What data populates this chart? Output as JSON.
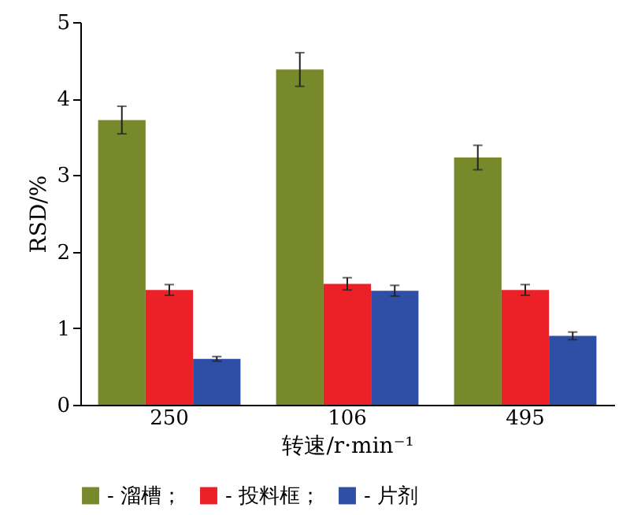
{
  "chart_data": {
    "type": "bar",
    "xlabel": "转速/r·min⁻¹",
    "ylabel": "RSD/%",
    "categories": [
      "250",
      "106",
      "495"
    ],
    "series": [
      {
        "name": "- 溜槽；",
        "color": "#77892b",
        "values": [
          3.72,
          4.38,
          3.23
        ],
        "errors": [
          0.18,
          0.22,
          0.16
        ]
      },
      {
        "name": "- 投料框；",
        "color": "#ec2127",
        "values": [
          1.5,
          1.58,
          1.5
        ],
        "errors": [
          0.07,
          0.08,
          0.07
        ]
      },
      {
        "name": "- 片剂",
        "color": "#2f4ea5",
        "values": [
          0.6,
          1.49,
          0.9
        ],
        "errors": [
          0.03,
          0.07,
          0.05
        ]
      }
    ],
    "ylim": [
      0,
      5
    ],
    "yticks": [
      0,
      1,
      2,
      3,
      4,
      5
    ],
    "grid": false,
    "legend": "bottom"
  }
}
